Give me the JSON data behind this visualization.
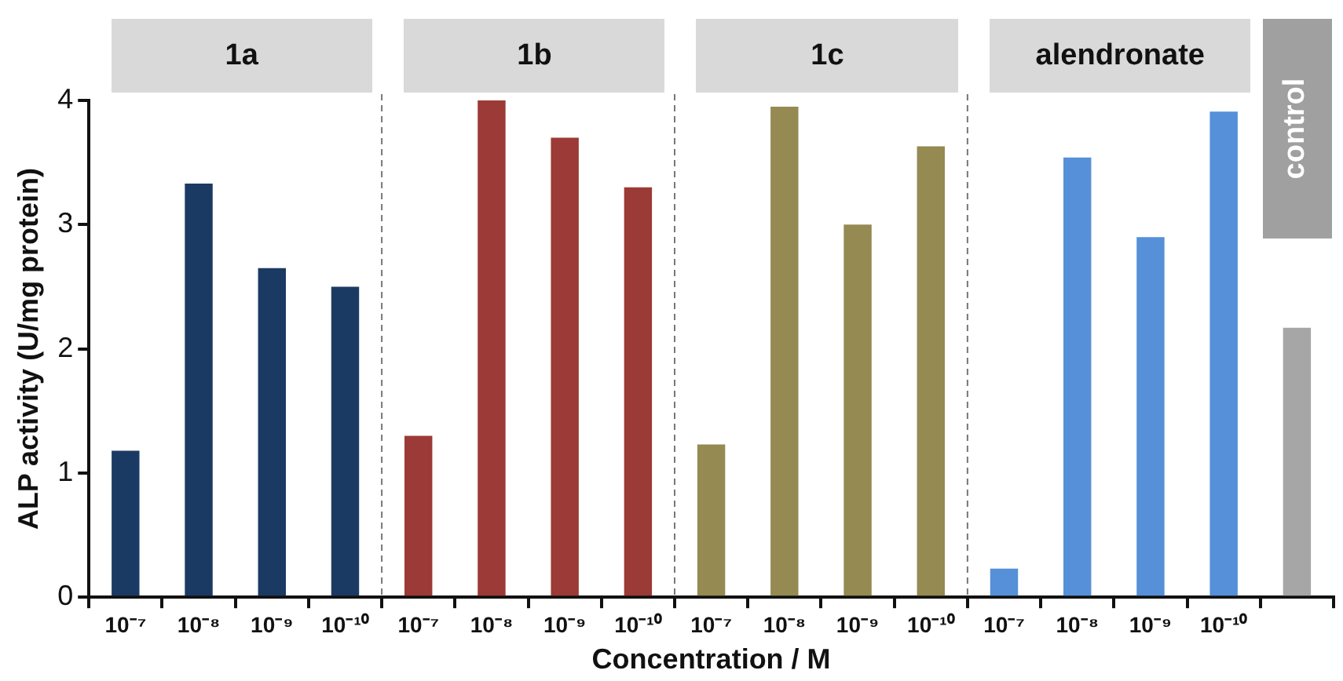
{
  "chart_data": {
    "type": "bar",
    "xlabel": "Concentration / M",
    "ylabel": "ALP activity (U/mg protein)",
    "categories": [
      "10⁻⁷",
      "10⁻⁸",
      "10⁻⁹",
      "10⁻¹⁰",
      "10⁻⁷",
      "10⁻⁸",
      "10⁻⁹",
      "10⁻¹⁰",
      "10⁻⁷",
      "10⁻⁸",
      "10⁻⁹",
      "10⁻¹⁰",
      "10⁻⁷",
      "10⁻⁸",
      "10⁻⁹",
      "10⁻¹⁰",
      null
    ],
    "values": [
      1.18,
      3.33,
      2.65,
      2.5,
      1.3,
      4.0,
      3.7,
      3.3,
      1.23,
      3.95,
      3.0,
      3.63,
      0.23,
      3.54,
      2.9,
      3.91,
      2.17
    ],
    "colors": [
      "#1b3a63",
      "#1b3a63",
      "#1b3a63",
      "#1b3a63",
      "#9b3a36",
      "#9b3a36",
      "#9b3a36",
      "#9b3a36",
      "#948a52",
      "#948a52",
      "#948a52",
      "#948a52",
      "#5590d8",
      "#5590d8",
      "#5590d8",
      "#5590d8",
      "#a6a6a6"
    ],
    "annotations": [
      "1a",
      "1b",
      "1c",
      "alendronate",
      "control"
    ],
    "ylim": [
      0,
      4
    ],
    "yticks": [
      0,
      1,
      2,
      3,
      4
    ],
    "grid": false,
    "legend": false
  }
}
